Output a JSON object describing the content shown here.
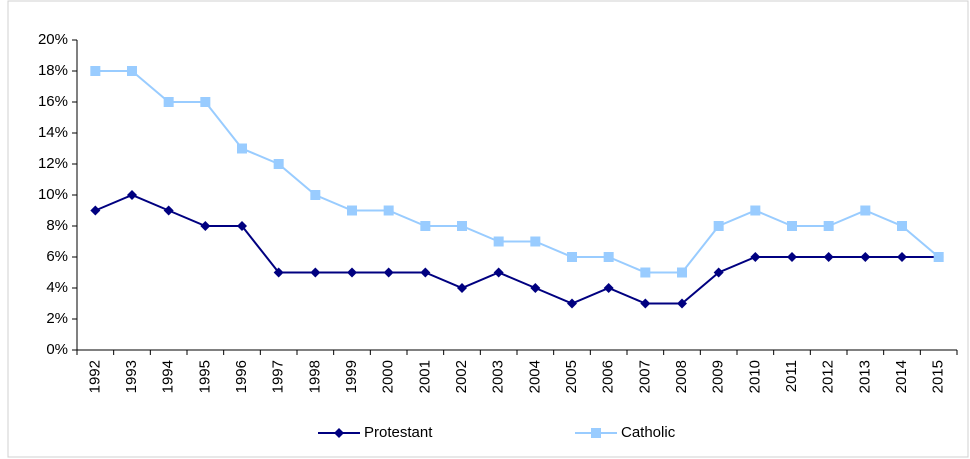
{
  "chart_data": {
    "type": "line",
    "categories": [
      "1992",
      "1993",
      "1994",
      "1995",
      "1996",
      "1997",
      "1998",
      "1999",
      "2000",
      "2001",
      "2002",
      "2003",
      "2004",
      "2005",
      "2006",
      "2007",
      "2008",
      "2009",
      "2010",
      "2011",
      "2012",
      "2013",
      "2014",
      "2015"
    ],
    "series": [
      {
        "name": "Protestant",
        "color": "#000080",
        "marker": "diamond",
        "values": [
          9,
          10,
          9,
          8,
          8,
          5,
          5,
          5,
          5,
          5,
          4,
          5,
          4,
          3,
          4,
          3,
          3,
          5,
          6,
          6,
          6,
          6,
          6,
          6
        ]
      },
      {
        "name": "Catholic",
        "color": "#99ccff",
        "marker": "square",
        "values": [
          18,
          18,
          16,
          16,
          13,
          12,
          10,
          9,
          9,
          8,
          8,
          7,
          7,
          6,
          6,
          5,
          5,
          8,
          9,
          8,
          8,
          9,
          8,
          6
        ]
      }
    ],
    "ylim": [
      0,
      20
    ],
    "yticks": [
      {
        "value": 0,
        "label": "0%"
      },
      {
        "value": 2,
        "label": "2%"
      },
      {
        "value": 4,
        "label": "4%"
      },
      {
        "value": 6,
        "label": "6%"
      },
      {
        "value": 8,
        "label": "8%"
      },
      {
        "value": 10,
        "label": "10%"
      },
      {
        "value": 12,
        "label": "12%"
      },
      {
        "value": 14,
        "label": "14%"
      },
      {
        "value": 16,
        "label": "16%"
      },
      {
        "value": 18,
        "label": "18%"
      },
      {
        "value": 20,
        "label": "20%"
      }
    ],
    "grid": false,
    "legend": "bottom"
  }
}
